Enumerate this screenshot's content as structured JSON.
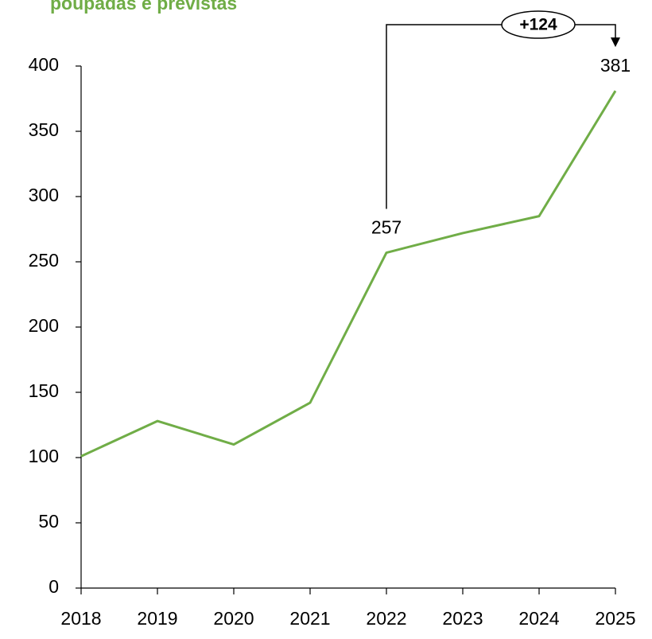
{
  "chart_data": {
    "type": "line",
    "title": "poupadas e previstas",
    "categories": [
      "2018",
      "2019",
      "2020",
      "2021",
      "2022",
      "2023",
      "2024",
      "2025"
    ],
    "series": [
      {
        "name": null,
        "color": "#70ad47",
        "values": [
          101,
          128,
          110,
          142,
          257,
          272,
          285,
          381
        ],
        "value_labels": [
          null,
          null,
          null,
          null,
          "257",
          null,
          null,
          "381"
        ]
      }
    ],
    "annotation": "+124",
    "ylim": [
      0,
      400
    ],
    "yticks": [
      0,
      50,
      100,
      150,
      200,
      250,
      300,
      350,
      400
    ],
    "grid": false
  }
}
